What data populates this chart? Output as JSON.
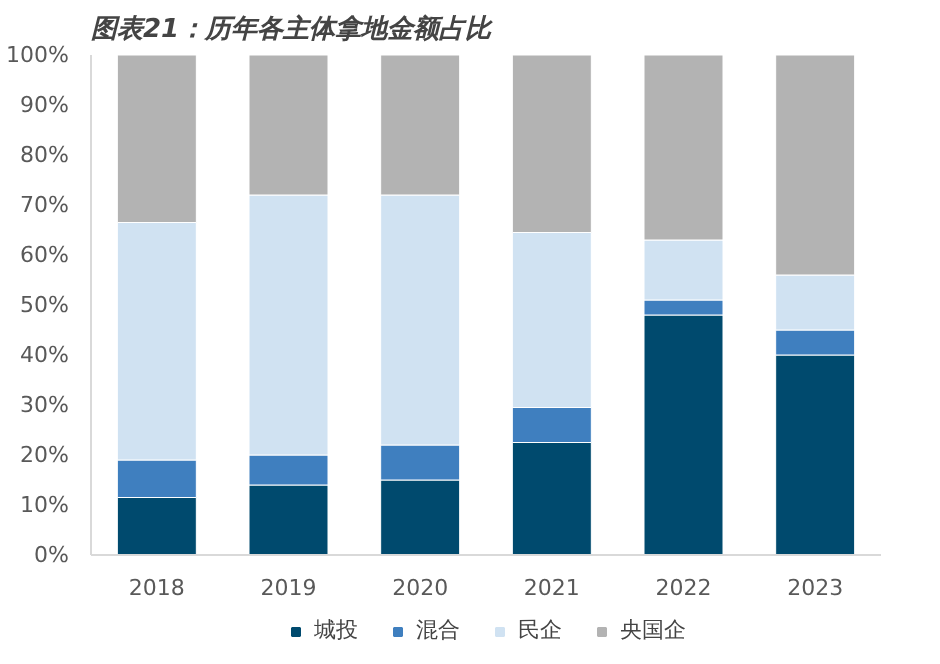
{
  "chart_data": {
    "type": "bar",
    "stacked": true,
    "title": "图表21：历年各主体拿地金额占比",
    "categories": [
      "2018",
      "2019",
      "2020",
      "2021",
      "2022",
      "2023"
    ],
    "series": [
      {
        "name": "城投",
        "color": "#004a6e",
        "values": [
          11.5,
          14,
          15,
          22.5,
          48,
          40
        ]
      },
      {
        "name": "混合",
        "color": "#3f7fbf",
        "values": [
          7.5,
          6,
          7,
          7,
          3,
          5
        ]
      },
      {
        "name": "民企",
        "color": "#d0e2f2",
        "values": [
          47.5,
          52,
          50,
          35,
          12,
          11
        ]
      },
      {
        "name": "央国企",
        "color": "#b3b3b3",
        "values": [
          33.5,
          28,
          28,
          35.5,
          37,
          44
        ]
      }
    ],
    "ylim": [
      0,
      100
    ],
    "yticks": [
      {
        "value": 0,
        "label": "0%"
      },
      {
        "value": 10,
        "label": "10%"
      },
      {
        "value": 20,
        "label": "20%"
      },
      {
        "value": 30,
        "label": "30%"
      },
      {
        "value": 40,
        "label": "40%"
      },
      {
        "value": 50,
        "label": "50%"
      },
      {
        "value": 60,
        "label": "60%"
      },
      {
        "value": 70,
        "label": "70%"
      },
      {
        "value": 80,
        "label": "80%"
      },
      {
        "value": 90,
        "label": "90%"
      },
      {
        "value": 100,
        "label": "100%"
      }
    ],
    "grid": false,
    "legend": "bottom"
  }
}
